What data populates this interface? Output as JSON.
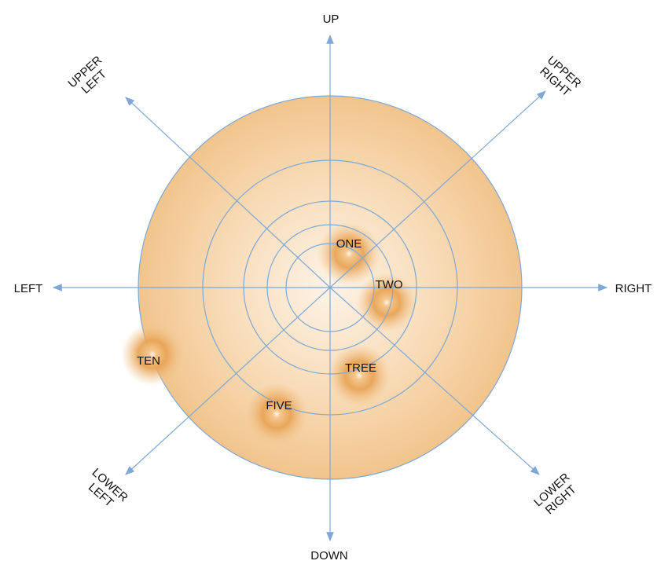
{
  "colors": {
    "axis": "#7fa8d6",
    "ring": "#7fa8d6",
    "disc_center": "#fdf1e3",
    "disc_edge": "#f2c48c",
    "blob_core": "#e59a3c",
    "text": "#111111"
  },
  "directions": {
    "up": [
      "UP"
    ],
    "down": [
      "DOWN"
    ],
    "left": [
      "LEFT"
    ],
    "right": [
      "RIGHT"
    ],
    "upper_left": [
      "UPPER",
      "LEFT"
    ],
    "upper_right": [
      "UPPER",
      "RIGHT"
    ],
    "lower_left": [
      "LOWER",
      "LEFT"
    ],
    "lower_right": [
      "LOWER",
      "RIGHT"
    ]
  },
  "blobs": [
    {
      "id": "one",
      "label": "ONE"
    },
    {
      "id": "two",
      "label": "TWO"
    },
    {
      "id": "tree",
      "label": "TREE"
    },
    {
      "id": "five",
      "label": "FIVE"
    },
    {
      "id": "ten",
      "label": "TEN"
    }
  ]
}
